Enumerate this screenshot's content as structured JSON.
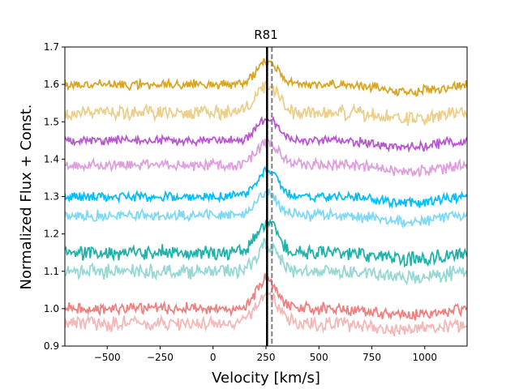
{
  "chart_data": {
    "type": "line",
    "title": "R81",
    "xlabel": "Velocity [km/s]",
    "ylabel": "Normalized Flux + Const.",
    "xlim": [
      -700,
      1200
    ],
    "ylim": [
      0.9,
      1.7
    ],
    "xticks": [
      -500,
      -250,
      0,
      250,
      500,
      750,
      1000
    ],
    "xtick_labels": [
      "−500",
      "−250",
      "0",
      "250",
      "500",
      "750",
      "1000"
    ],
    "yticks": [
      0.9,
      1.0,
      1.1,
      1.2,
      1.3,
      1.4,
      1.5,
      1.6,
      1.7
    ],
    "ytick_labels": [
      "0.9",
      "1.0",
      "1.1",
      "1.2",
      "1.3",
      "1.4",
      "1.5",
      "1.6",
      "1.7"
    ],
    "vlines": [
      {
        "name": "systemic-velocity",
        "x": 255,
        "color": "#000000",
        "style": "solid"
      },
      {
        "name": "reference-velocity",
        "x": 278,
        "color": "#808080",
        "style": "dashed"
      }
    ],
    "series": [
      {
        "name": "spectrum-1",
        "color": "#DAA520",
        "base": 1.6,
        "peak": 0.06,
        "noise": 0.01,
        "seed": 11
      },
      {
        "name": "spectrum-2",
        "color": "#EBCF8A",
        "base": 1.525,
        "peak": 0.07,
        "noise": 0.015,
        "seed": 12
      },
      {
        "name": "spectrum-3",
        "color": "#BA55D3",
        "base": 1.45,
        "peak": 0.06,
        "noise": 0.01,
        "seed": 13
      },
      {
        "name": "spectrum-4",
        "color": "#DDA0DD",
        "base": 1.385,
        "peak": 0.06,
        "noise": 0.012,
        "seed": 14
      },
      {
        "name": "spectrum-5",
        "color": "#00BFFF",
        "base": 1.3,
        "peak": 0.07,
        "noise": 0.01,
        "seed": 15
      },
      {
        "name": "spectrum-6",
        "color": "#7FD8F5",
        "base": 1.25,
        "peak": 0.06,
        "noise": 0.012,
        "seed": 16
      },
      {
        "name": "spectrum-7",
        "color": "#20B2AA",
        "base": 1.15,
        "peak": 0.08,
        "noise": 0.015,
        "seed": 17
      },
      {
        "name": "spectrum-8",
        "color": "#96D8D4",
        "base": 1.1,
        "peak": 0.07,
        "noise": 0.015,
        "seed": 18
      },
      {
        "name": "spectrum-9",
        "color": "#F08080",
        "base": 1.0,
        "peak": 0.08,
        "noise": 0.012,
        "seed": 19
      },
      {
        "name": "spectrum-10",
        "color": "#F4B8B8",
        "base": 0.96,
        "peak": 0.08,
        "noise": 0.015,
        "seed": 20
      }
    ]
  }
}
